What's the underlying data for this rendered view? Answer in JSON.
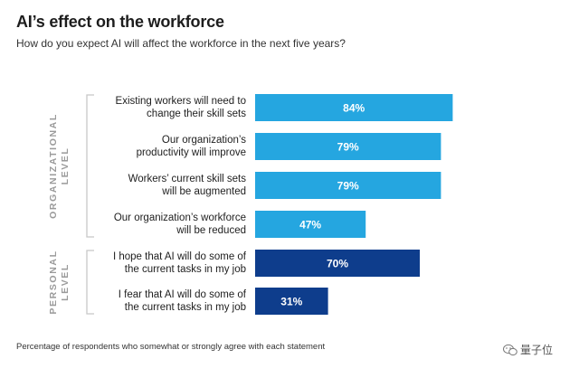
{
  "title": "AI’s effect on the workforce",
  "subtitle": "How do you expect  AI will affect the workforce in the next five years?",
  "footnote": "Percentage of respondents who somewhat or strongly agree with each statement",
  "watermark": "量子位",
  "colors": {
    "organizational": "#25a6e0",
    "personal": "#0e3d8c",
    "bracket": "#c8c8c8"
  },
  "chart_data": {
    "type": "bar",
    "orientation": "horizontal",
    "title": "AI’s effect on the workforce",
    "subtitle": "How do you expect  AI will affect the workforce in the next five years?",
    "xlim": [
      0,
      100
    ],
    "unit": "%",
    "groups": [
      {
        "name_lines": [
          "ORGANIZATIONAL",
          "LEVEL"
        ],
        "color": "#25a6e0",
        "items": [
          {
            "label_lines": [
              "Existing workers will need to",
              "change their skill sets"
            ],
            "value": 84
          },
          {
            "label_lines": [
              "Our organization’s",
              "productivity will improve"
            ],
            "value": 79
          },
          {
            "label_lines": [
              "Workers’ current skill sets",
              "will be augmented"
            ],
            "value": 79
          },
          {
            "label_lines": [
              "Our organization’s workforce",
              "will be reduced"
            ],
            "value": 47
          }
        ]
      },
      {
        "name_lines": [
          "PERSONAL",
          "LEVEL"
        ],
        "color": "#0e3d8c",
        "items": [
          {
            "label_lines": [
              "I hope that AI will do some of",
              "the current tasks in my job"
            ],
            "value": 70
          },
          {
            "label_lines": [
              "I fear that AI will do some of",
              "the current  tasks in my job"
            ],
            "value": 31
          }
        ]
      }
    ]
  }
}
